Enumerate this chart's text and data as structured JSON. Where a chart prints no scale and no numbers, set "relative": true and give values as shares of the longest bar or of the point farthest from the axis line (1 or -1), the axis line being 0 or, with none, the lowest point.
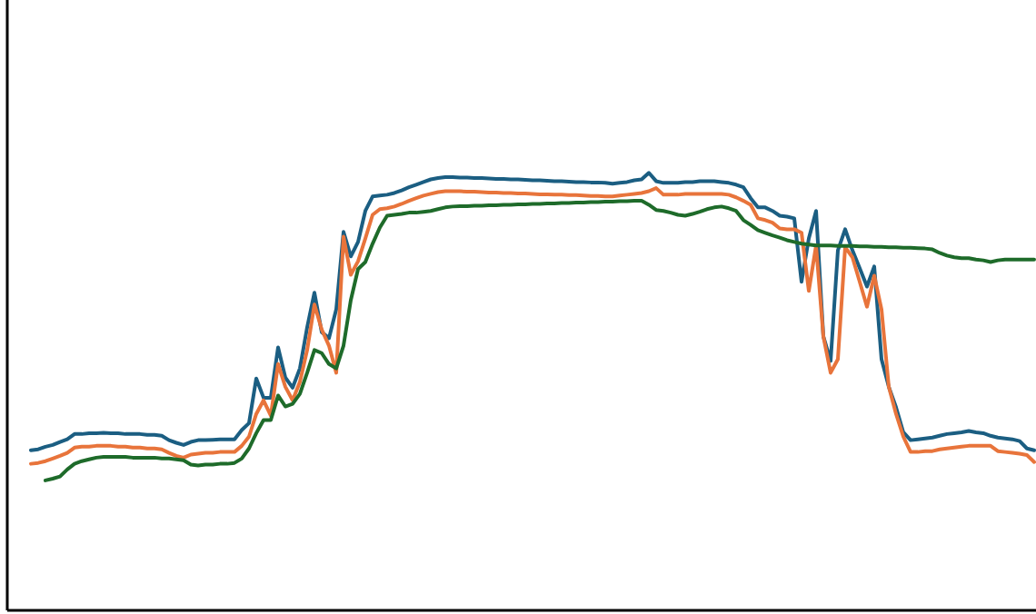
{
  "chart_data": {
    "type": "line",
    "relative": true,
    "categories": [
      null,
      null,
      null,
      null,
      null,
      null,
      null,
      null,
      null,
      null,
      null,
      null,
      null,
      null,
      null,
      null,
      null,
      null,
      null,
      null,
      null,
      null,
      null,
      null,
      null,
      null,
      null,
      null,
      null,
      null,
      null,
      null,
      null,
      null,
      null,
      null,
      null,
      null,
      null,
      null,
      null,
      null,
      null,
      null,
      null,
      null,
      null,
      null,
      null,
      null,
      null,
      null,
      null,
      null,
      null,
      null,
      null,
      null,
      null,
      null,
      null,
      null,
      null,
      null,
      null,
      null,
      null,
      null,
      null,
      null,
      null,
      null,
      null,
      null,
      null,
      null,
      null,
      null,
      null,
      null,
      null,
      null,
      null,
      null,
      null,
      null,
      null,
      null,
      null,
      null,
      null,
      null,
      null,
      null,
      null,
      null,
      null,
      null,
      null,
      null,
      null,
      null,
      null,
      null,
      null,
      null,
      null,
      null,
      null,
      null,
      null,
      null,
      null,
      null,
      null,
      null,
      null,
      null,
      null,
      null,
      null,
      null,
      null,
      null,
      null,
      null,
      null,
      null,
      null,
      null,
      null,
      null,
      null,
      null,
      null,
      null,
      null,
      null,
      null
    ],
    "series": [
      {
        "color": "#1b5e82",
        "values": [
          0.366,
          0.368,
          0.374,
          0.378,
          0.385,
          0.391,
          0.403,
          0.403,
          0.405,
          0.405,
          0.406,
          0.405,
          0.405,
          0.403,
          0.403,
          0.403,
          0.401,
          0.401,
          0.399,
          0.389,
          0.383,
          0.378,
          0.385,
          0.389,
          0.389,
          0.39,
          0.391,
          0.391,
          0.391,
          0.412,
          0.428,
          0.53,
          0.486,
          0.486,
          0.601,
          0.532,
          0.509,
          0.553,
          0.647,
          0.726,
          0.636,
          0.622,
          0.688,
          0.865,
          0.809,
          0.842,
          0.913,
          0.946,
          0.948,
          0.95,
          0.954,
          0.96,
          0.967,
          0.973,
          0.979,
          0.985,
          0.988,
          0.99,
          0.99,
          0.989,
          0.989,
          0.988,
          0.988,
          0.987,
          0.986,
          0.986,
          0.985,
          0.985,
          0.984,
          0.983,
          0.983,
          0.982,
          0.981,
          0.981,
          0.98,
          0.979,
          0.979,
          0.978,
          0.978,
          0.977,
          0.975,
          0.977,
          0.979,
          0.983,
          0.985,
          1,
          0.981,
          0.977,
          0.977,
          0.977,
          0.979,
          0.979,
          0.981,
          0.981,
          0.981,
          0.979,
          0.977,
          0.973,
          0.967,
          0.942,
          0.921,
          0.921,
          0.913,
          0.902,
          0.9,
          0.896,
          0.751,
          0.85,
          0.913,
          0.626,
          0.57,
          0.823,
          0.871,
          0.823,
          0.782,
          0.74,
          0.786,
          0.574,
          0.511,
          0.464,
          0.407,
          0.389,
          0.391,
          0.393,
          0.395,
          0.399,
          0.403,
          0.405,
          0.407,
          0.41,
          0.407,
          0.405,
          0.399,
          0.395,
          0.393,
          0.391,
          0.387,
          0.37,
          0.366
        ]
      },
      {
        "color": "#e8743b",
        "values": [
          0.335,
          0.337,
          0.341,
          0.347,
          0.353,
          0.36,
          0.372,
          0.374,
          0.374,
          0.376,
          0.376,
          0.376,
          0.374,
          0.374,
          0.372,
          0.372,
          0.37,
          0.37,
          0.368,
          0.36,
          0.353,
          0.349,
          0.356,
          0.358,
          0.36,
          0.36,
          0.362,
          0.362,
          0.362,
          0.376,
          0.397,
          0.449,
          0.48,
          0.445,
          0.563,
          0.511,
          0.48,
          0.522,
          0.595,
          0.699,
          0.642,
          0.605,
          0.543,
          0.854,
          0.767,
          0.798,
          0.85,
          0.904,
          0.917,
          0.919,
          0.923,
          0.929,
          0.936,
          0.942,
          0.948,
          0.952,
          0.956,
          0.958,
          0.958,
          0.958,
          0.957,
          0.957,
          0.956,
          0.955,
          0.955,
          0.954,
          0.954,
          0.953,
          0.953,
          0.952,
          0.951,
          0.951,
          0.95,
          0.95,
          0.949,
          0.949,
          0.948,
          0.947,
          0.947,
          0.946,
          0.946,
          0.948,
          0.95,
          0.952,
          0.954,
          0.958,
          0.965,
          0.95,
          0.95,
          0.95,
          0.952,
          0.952,
          0.952,
          0.952,
          0.952,
          0.952,
          0.95,
          0.944,
          0.936,
          0.927,
          0.896,
          0.892,
          0.886,
          0.873,
          0.871,
          0.871,
          0.863,
          0.73,
          0.834,
          0.626,
          0.543,
          0.574,
          0.83,
          0.807,
          0.751,
          0.694,
          0.765,
          0.688,
          0.511,
          0.449,
          0.397,
          0.362,
          0.362,
          0.364,
          0.364,
          0.368,
          0.37,
          0.372,
          0.374,
          0.376,
          0.376,
          0.376,
          0.376,
          0.364,
          0.362,
          0.36,
          0.358,
          0.355,
          0.339
        ]
      },
      {
        "color": "#1e6b2a",
        "values": [
          null,
          null,
          0.297,
          0.301,
          0.306,
          0.322,
          0.335,
          0.341,
          0.345,
          0.349,
          0.351,
          0.351,
          0.351,
          0.351,
          0.349,
          0.349,
          0.349,
          0.349,
          0.347,
          0.347,
          0.345,
          0.343,
          0.333,
          0.331,
          0.333,
          0.333,
          0.335,
          0.335,
          0.337,
          0.347,
          0.37,
          0.405,
          0.435,
          0.435,
          0.491,
          0.466,
          0.472,
          0.495,
          0.543,
          0.595,
          0.588,
          0.563,
          0.553,
          0.605,
          0.709,
          0.78,
          0.796,
          0.838,
          0.875,
          0.902,
          0.904,
          0.906,
          0.909,
          0.909,
          0.911,
          0.913,
          0.917,
          0.921,
          0.923,
          0.924,
          0.924,
          0.925,
          0.925,
          0.926,
          0.926,
          0.927,
          0.927,
          0.928,
          0.928,
          0.929,
          0.929,
          0.93,
          0.93,
          0.931,
          0.931,
          0.932,
          0.932,
          0.933,
          0.933,
          0.934,
          0.934,
          0.935,
          0.935,
          0.936,
          0.936,
          0.927,
          0.915,
          0.913,
          0.909,
          0.904,
          0.902,
          0.906,
          0.911,
          0.917,
          0.921,
          0.923,
          0.919,
          0.913,
          0.892,
          0.881,
          0.869,
          0.863,
          0.857,
          0.852,
          0.846,
          0.842,
          0.838,
          0.836,
          0.834,
          0.834,
          0.834,
          0.833,
          0.833,
          0.833,
          0.832,
          0.832,
          0.831,
          0.831,
          0.83,
          0.83,
          0.829,
          0.829,
          0.828,
          0.827,
          0.825,
          0.817,
          0.811,
          0.807,
          0.805,
          0.805,
          0.802,
          0.8,
          0.796,
          0.8,
          0.802,
          0.802,
          0.802,
          0.802,
          0.802
        ]
      }
    ]
  }
}
